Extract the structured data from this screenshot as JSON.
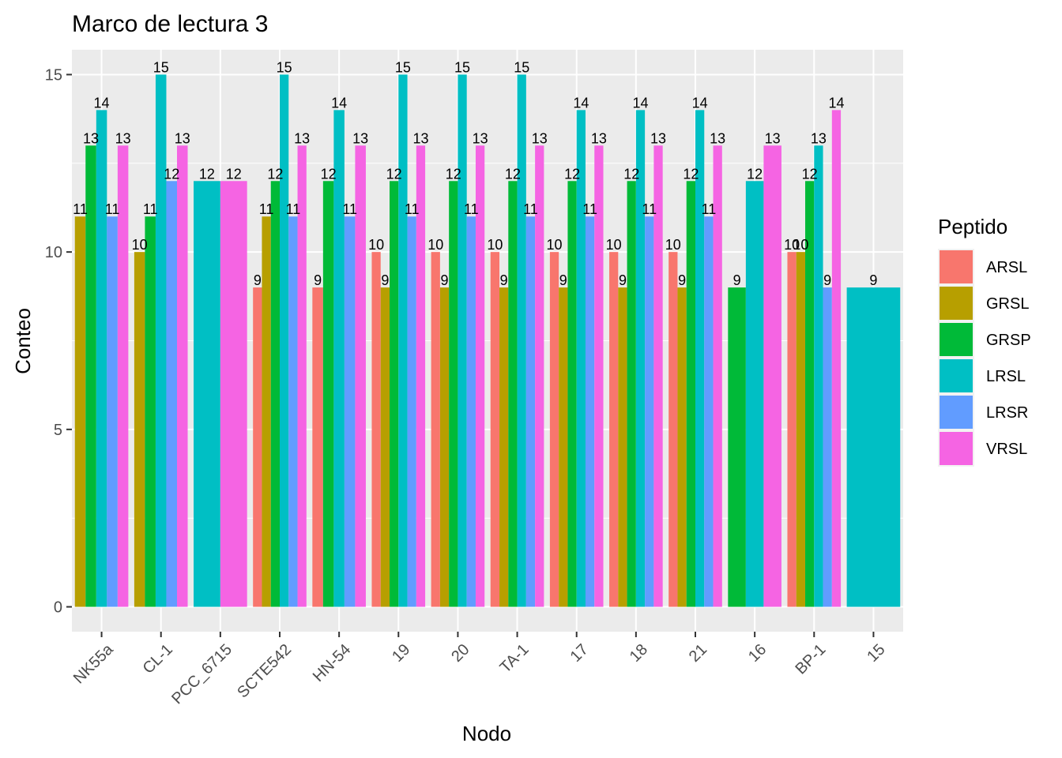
{
  "chart_data": {
    "type": "bar",
    "title": "Marco de lectura 3",
    "xlabel": "Nodo",
    "ylabel": "Conteo",
    "ylim": [
      -0.7,
      15.7
    ],
    "yticks": [
      0,
      5,
      10,
      15
    ],
    "grid": true,
    "legend": {
      "title": "Peptido",
      "position": "right"
    },
    "categories": [
      "NK55a",
      "CL-1",
      "PCC_6715",
      "SCTE542",
      "HN-54",
      "19",
      "20",
      "TA-1",
      "17",
      "18",
      "21",
      "16",
      "BP-1",
      "15"
    ],
    "series": [
      {
        "name": "ARSL",
        "color": "#F8766D",
        "values": [
          null,
          null,
          null,
          9,
          9,
          10,
          10,
          10,
          10,
          10,
          10,
          null,
          10,
          null
        ]
      },
      {
        "name": "GRSL",
        "color": "#B79F00",
        "values": [
          11,
          10,
          null,
          11,
          null,
          9,
          9,
          9,
          9,
          9,
          9,
          null,
          10,
          null
        ]
      },
      {
        "name": "GRSP",
        "color": "#00BA38",
        "values": [
          13,
          11,
          null,
          12,
          12,
          12,
          12,
          12,
          12,
          12,
          12,
          9,
          12,
          null
        ]
      },
      {
        "name": "LRSL",
        "color": "#00BFC4",
        "values": [
          14,
          15,
          12,
          15,
          14,
          15,
          15,
          15,
          14,
          14,
          14,
          12,
          13,
          9
        ]
      },
      {
        "name": "LRSR",
        "color": "#619CFF",
        "values": [
          11,
          12,
          null,
          11,
          11,
          11,
          11,
          11,
          11,
          11,
          11,
          null,
          9,
          null
        ]
      },
      {
        "name": "VRSL",
        "color": "#F564E3",
        "values": [
          13,
          13,
          12,
          13,
          13,
          13,
          13,
          13,
          13,
          13,
          13,
          13,
          14,
          null
        ]
      }
    ]
  }
}
